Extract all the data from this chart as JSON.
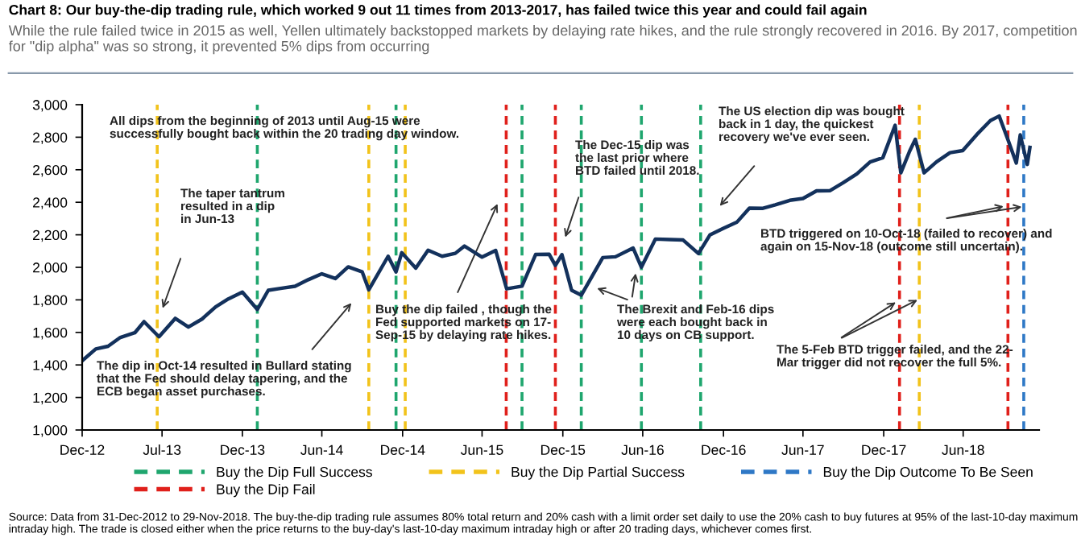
{
  "chart_data": {
    "type": "line",
    "title": "Chart 8: Our buy-the-dip trading rule, which worked 9 out 11 times from 2013-2017, has failed twice this year and could fail again",
    "subtitle": "While the rule failed twice in 2015 as well, Yellen ultimately backstopped markets by delaying rate hikes, and the rule strongly recovered in 2016. By 2017, competition for \"dip alpha\" was so strong, it prevented 5% dips from occurring",
    "x": [
      "2012-12-31",
      "2013-01-31",
      "2013-02-28",
      "2013-03-28",
      "2013-04-30",
      "2013-05-21",
      "2013-06-24",
      "2013-07-31",
      "2013-08-30",
      "2013-09-30",
      "2013-10-31",
      "2013-11-29",
      "2013-12-31",
      "2014-02-03",
      "2014-02-28",
      "2014-03-31",
      "2014-04-30",
      "2014-05-30",
      "2014-06-30",
      "2014-07-31",
      "2014-08-29",
      "2014-09-30",
      "2014-10-15",
      "2014-11-28",
      "2014-12-16",
      "2014-12-29",
      "2015-01-30",
      "2015-02-27",
      "2015-03-31",
      "2015-04-30",
      "2015-05-21",
      "2015-06-30",
      "2015-07-31",
      "2015-08-25",
      "2015-09-29",
      "2015-10-30",
      "2015-11-30",
      "2015-12-14",
      "2015-12-29",
      "2016-01-20",
      "2016-02-11",
      "2016-03-31",
      "2016-04-29",
      "2016-06-08",
      "2016-06-27",
      "2016-07-29",
      "2016-08-31",
      "2016-09-30",
      "2016-11-04",
      "2016-11-30",
      "2016-12-30",
      "2017-01-31",
      "2017-02-28",
      "2017-03-31",
      "2017-04-28",
      "2017-05-31",
      "2017-06-30",
      "2017-07-31",
      "2017-08-31",
      "2017-09-29",
      "2017-10-31",
      "2017-11-30",
      "2017-12-29",
      "2018-01-26",
      "2018-02-08",
      "2018-02-28",
      "2018-03-13",
      "2018-04-02",
      "2018-04-30",
      "2018-05-31",
      "2018-06-29",
      "2018-07-31",
      "2018-08-31",
      "2018-09-20",
      "2018-10-10",
      "2018-10-29",
      "2018-11-07",
      "2018-11-23",
      "2018-11-29"
    ],
    "series": [
      {
        "color": "#13315c",
        "values": [
          1426,
          1498,
          1515,
          1569,
          1598,
          1666,
          1573,
          1686,
          1633,
          1682,
          1757,
          1806,
          1848,
          1741,
          1859,
          1872,
          1884,
          1924,
          1960,
          1931,
          2003,
          1972,
          1862,
          2068,
          1972,
          2090,
          1995,
          2105,
          2068,
          2086,
          2131,
          2063,
          2104,
          1868,
          1884,
          2079,
          2080,
          2012,
          2078,
          1859,
          1829,
          2060,
          2065,
          2119,
          2001,
          2174,
          2171,
          2168,
          2085,
          2199,
          2239,
          2279,
          2364,
          2363,
          2384,
          2412,
          2423,
          2470,
          2472,
          2519,
          2575,
          2648,
          2674,
          2873,
          2581,
          2714,
          2787,
          2581,
          2648,
          2705,
          2718,
          2816,
          2902,
          2930,
          2785,
          2641,
          2814,
          2633,
          2737
        ]
      }
    ],
    "xlim": [
      "2012-12-31",
      "2018-12-20"
    ],
    "xticks": [
      {
        "value": "2012-12-31",
        "label": "Dec-12"
      },
      {
        "value": "2013-07-01",
        "label": "Jul-13"
      },
      {
        "value": "2013-12-31",
        "label": "Dec-13"
      },
      {
        "value": "2014-06-30",
        "label": "Jun-14"
      },
      {
        "value": "2014-12-31",
        "label": "Dec-14"
      },
      {
        "value": "2015-06-30",
        "label": "Jun-15"
      },
      {
        "value": "2015-12-31",
        "label": "Dec-15"
      },
      {
        "value": "2016-06-30",
        "label": "Jun-16"
      },
      {
        "value": "2016-12-31",
        "label": "Dec-16"
      },
      {
        "value": "2017-06-30",
        "label": "Jun-17"
      },
      {
        "value": "2017-12-31",
        "label": "Dec-17"
      },
      {
        "value": "2018-06-30",
        "label": "Jun-18"
      }
    ],
    "ylim": [
      1000,
      3000
    ],
    "yticks": [
      {
        "value": 1000,
        "label": "1,000"
      },
      {
        "value": 1200,
        "label": "1,200"
      },
      {
        "value": 1400,
        "label": "1,400"
      },
      {
        "value": 1600,
        "label": "1,600"
      },
      {
        "value": 1800,
        "label": "1,800"
      },
      {
        "value": 2000,
        "label": "2,000"
      },
      {
        "value": 2200,
        "label": "2,200"
      },
      {
        "value": 2400,
        "label": "2,400"
      },
      {
        "value": 2600,
        "label": "2,600"
      },
      {
        "value": 2800,
        "label": "2,800"
      },
      {
        "value": 3000,
        "label": "3,000"
      }
    ],
    "ref_lines": [
      {
        "axis": "x",
        "value": "2013-06-20",
        "label": "Buy the Dip Partial Success",
        "color": "#f2c31b",
        "line_style": "dashed"
      },
      {
        "axis": "x",
        "value": "2014-02-03",
        "label": "Buy the Dip Full Success",
        "color": "#1fa66e",
        "line_style": "dashed"
      },
      {
        "axis": "x",
        "value": "2014-10-15",
        "color": "#f2c31b",
        "line_style": "dashed"
      },
      {
        "axis": "x",
        "value": "2014-12-16",
        "color": "#1fa66e",
        "line_style": "dashed"
      },
      {
        "axis": "x",
        "value": "2015-01-06",
        "color": "#f2c31b",
        "line_style": "dashed"
      },
      {
        "axis": "x",
        "value": "2015-08-24",
        "label": "Buy the Dip Fail",
        "color": "#e0201b",
        "line_style": "dashed"
      },
      {
        "axis": "x",
        "value": "2015-09-29",
        "color": "#1fa66e",
        "line_style": "dashed"
      },
      {
        "axis": "x",
        "value": "2015-12-14",
        "color": "#e0201b",
        "line_style": "dashed"
      },
      {
        "axis": "x",
        "value": "2016-02-11",
        "color": "#1fa66e",
        "line_style": "dashed"
      },
      {
        "axis": "x",
        "value": "2016-06-27",
        "color": "#1fa66e",
        "line_style": "dashed"
      },
      {
        "axis": "x",
        "value": "2016-11-09",
        "color": "#1fa66e",
        "line_style": "dashed"
      },
      {
        "axis": "x",
        "value": "2018-02-05",
        "color": "#e0201b",
        "line_style": "dashed"
      },
      {
        "axis": "x",
        "value": "2018-03-22",
        "color": "#f2c31b",
        "line_style": "dashed"
      },
      {
        "axis": "x",
        "value": "2018-10-10",
        "color": "#e0201b",
        "line_style": "dashed"
      },
      {
        "axis": "x",
        "value": "2018-11-15",
        "label": "Buy the Dip Outcome To Be Seen",
        "color": "#2e78c6",
        "line_style": "dashed"
      }
    ],
    "annotations": [
      "All dips from the beginning of 2013 until Aug-15 were\nsuccessfully bought back within the 20 trading day window.",
      "The taper tantrum\nresulted in a dip\nin Jun-13",
      "The dip in Oct-14 resulted in Bullard stating\nthat the Fed should delay tapering, and the\nECB began asset purchases.",
      "Buy the dip failed , though the\nFed supported markets on 17-\nSep-15 by delaying rate hikes.",
      "The Dec-15 dip was\nthe last prior where\nBTD failed until 2018.",
      "The US election dip was bought\nback in 1 day, the quickest\nrecovery we've ever seen.",
      "The Brexit and Feb-16 dips\nwere each bought back in\n10 days on CB support.",
      {
        "text": "BTD triggered on 10-Oct-18 (failed to recover) and\nagain on 15-Nov-18 (outcome still uncertain).",
        "x": "2018-10-10",
        "y": 2380
      },
      {
        "text": "The 5-Feb BTD trigger failed, and the 22-\nMar trigger did not recover the full 5%.",
        "x": "2018-02-05",
        "y": 1800
      },
      "Source: Data from 31-Dec-2012 to 29-Nov-2018. The buy-the-dip trading rule assumes 80% total return and 20% cash with a limit order set daily to use the 20% cash to buy futures at 95% of the last-10-day maximum intraday high. The trade is closed either when the price returns to the buy-day's last-10-day maximum intraday high or after 20 trading days, whichever comes first."
    ],
    "grid": false,
    "legend": "bottom",
    "line_style": "solid",
    "marker": "none"
  }
}
